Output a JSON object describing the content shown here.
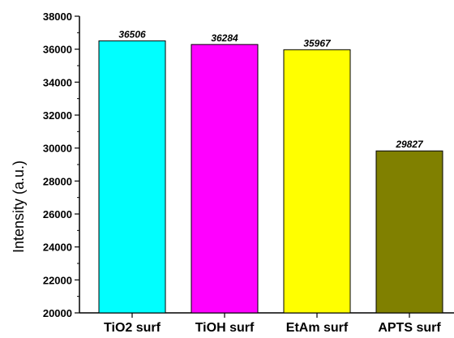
{
  "chart_data": {
    "type": "bar",
    "title": "",
    "xlabel": "",
    "ylabel": "Intensity (a.u.)",
    "categories": [
      "TiO2 surf",
      "TiOH surf",
      "EtAm surf",
      "APTS surf"
    ],
    "values": [
      36506,
      36284,
      35967,
      29827
    ],
    "data_labels": [
      "36506",
      "36284",
      "35967",
      "29827"
    ],
    "colors": [
      "#00ffff",
      "#ff00ff",
      "#ffff00",
      "#808000"
    ],
    "ylim": [
      20000,
      38000
    ],
    "yticks": [
      20000,
      22000,
      24000,
      26000,
      28000,
      30000,
      32000,
      34000,
      36000,
      38000
    ],
    "ytick_labels": [
      "20000",
      "22000",
      "24000",
      "26000",
      "28000",
      "30000",
      "32000",
      "34000",
      "36000",
      "38000"
    ],
    "grid": false,
    "legend": "none"
  }
}
